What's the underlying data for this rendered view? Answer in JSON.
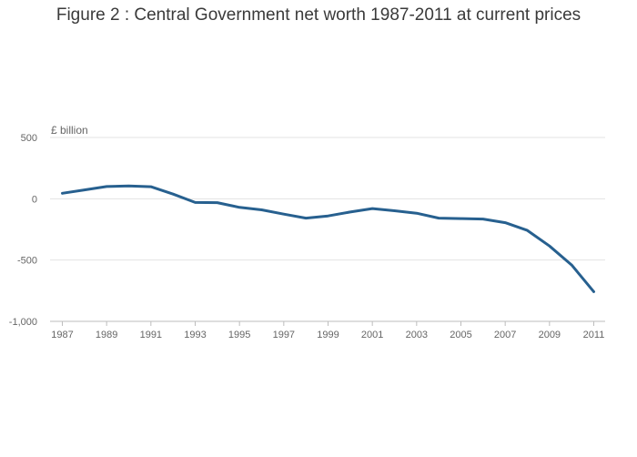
{
  "chart_data": {
    "type": "line",
    "title": "Figure 2 : Central Government net worth 1987-2011 at current prices",
    "ylabel": "£ billion",
    "xlabel": "",
    "ylim": [
      -1000,
      500
    ],
    "yticks": [
      500,
      0,
      -500,
      -1000
    ],
    "ytick_labels": [
      "500",
      "0",
      "-500",
      "-1,000"
    ],
    "xticks": [
      1987,
      1989,
      1991,
      1993,
      1995,
      1997,
      1999,
      2001,
      2003,
      2005,
      2007,
      2009,
      2011
    ],
    "grid": true,
    "line_color": "#27608f",
    "x": [
      1987,
      1988,
      1989,
      1990,
      1991,
      1992,
      1993,
      1994,
      1995,
      1996,
      1997,
      1998,
      1999,
      2000,
      2001,
      2002,
      2003,
      2004,
      2005,
      2006,
      2007,
      2008,
      2009,
      2010,
      2011
    ],
    "series": [
      {
        "values": [
          45,
          72,
          100,
          105,
          98,
          38,
          -30,
          -32,
          -70,
          -90,
          -125,
          -158,
          -140,
          -108,
          -80,
          -98,
          -118,
          -158,
          -162,
          -165,
          -195,
          -258,
          -385,
          -540,
          -758
        ]
      }
    ]
  }
}
